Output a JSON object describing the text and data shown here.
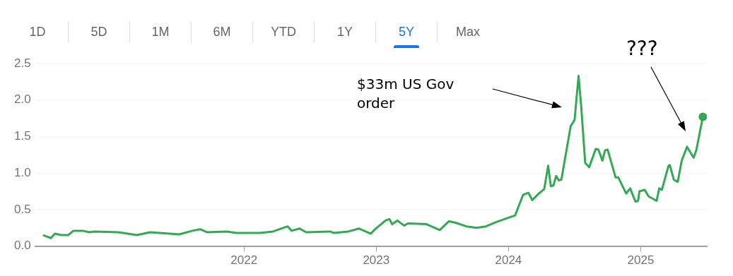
{
  "chart_data": {
    "type": "line",
    "x": [
      2020.48,
      2020.54,
      2020.57,
      2020.62,
      2020.67,
      2020.71,
      2020.78,
      2020.83,
      2020.87,
      2021.05,
      2021.19,
      2021.29,
      2021.51,
      2021.61,
      2021.67,
      2021.72,
      2021.87,
      2021.94,
      2022.12,
      2022.22,
      2022.33,
      2022.36,
      2022.42,
      2022.47,
      2022.65,
      2022.68,
      2022.79,
      2022.87,
      2022.96,
      2022.99,
      2023.07,
      2023.1,
      2023.12,
      2023.16,
      2023.21,
      2023.24,
      2023.38,
      2023.48,
      2023.55,
      2023.6,
      2023.68,
      2023.76,
      2023.83,
      2023.91,
      2023.97,
      2024.05,
      2024.11,
      2024.15,
      2024.18,
      2024.23,
      2024.27,
      2024.3,
      2024.32,
      2024.34,
      2024.36,
      2024.38,
      2024.4,
      2024.47,
      2024.5,
      2024.53,
      2024.55,
      2024.58,
      2024.61,
      2024.66,
      2024.68,
      2024.71,
      2024.73,
      2024.75,
      2024.81,
      2024.83,
      2024.89,
      2024.92,
      2024.96,
      2024.98,
      2024.99,
      2025.03,
      2025.06,
      2025.12,
      2025.14,
      2025.16,
      2025.21,
      2025.22,
      2025.25,
      2025.28,
      2025.31,
      2025.35,
      2025.4,
      2025.42,
      2025.47
    ],
    "series": [
      {
        "color": "#34a853",
        "values": [
          0.15,
          0.11,
          0.17,
          0.15,
          0.15,
          0.21,
          0.21,
          0.19,
          0.2,
          0.19,
          0.15,
          0.19,
          0.16,
          0.21,
          0.23,
          0.19,
          0.2,
          0.18,
          0.18,
          0.2,
          0.27,
          0.21,
          0.24,
          0.19,
          0.2,
          0.18,
          0.2,
          0.24,
          0.17,
          0.23,
          0.35,
          0.37,
          0.3,
          0.35,
          0.28,
          0.31,
          0.3,
          0.22,
          0.34,
          0.32,
          0.27,
          0.25,
          0.27,
          0.33,
          0.37,
          0.42,
          0.7,
          0.73,
          0.63,
          0.72,
          0.78,
          1.1,
          0.82,
          0.83,
          0.96,
          0.9,
          0.91,
          1.64,
          1.73,
          2.33,
          1.91,
          1.14,
          1.08,
          1.33,
          1.32,
          1.17,
          1.31,
          1.32,
          0.94,
          0.94,
          0.72,
          0.79,
          0.61,
          0.62,
          0.75,
          0.77,
          0.68,
          0.62,
          0.79,
          0.77,
          1.1,
          1.11,
          0.91,
          0.88,
          1.17,
          1.36,
          1.21,
          1.31,
          1.77
        ]
      }
    ],
    "xlim": [
      2020.42,
      2025.5
    ],
    "xticks": [
      2022,
      2023,
      2024,
      2025
    ],
    "ylim": [
      0,
      2.5
    ],
    "yticks": [
      {
        "value": 0,
        "label": "0.0"
      },
      {
        "value": 0.5,
        "label": "0.5"
      },
      {
        "value": 1,
        "label": "1.0"
      },
      {
        "value": 1.5,
        "label": "1.5"
      },
      {
        "value": 2,
        "label": "2.0"
      },
      {
        "value": 2.5,
        "label": "2.5"
      }
    ],
    "grid": "y",
    "annotations": [
      "$33m US Gov order",
      "???",
      "1D",
      "5D",
      "1M",
      "6M",
      "YTD",
      "1Y",
      "5Y",
      "Max"
    ]
  }
}
